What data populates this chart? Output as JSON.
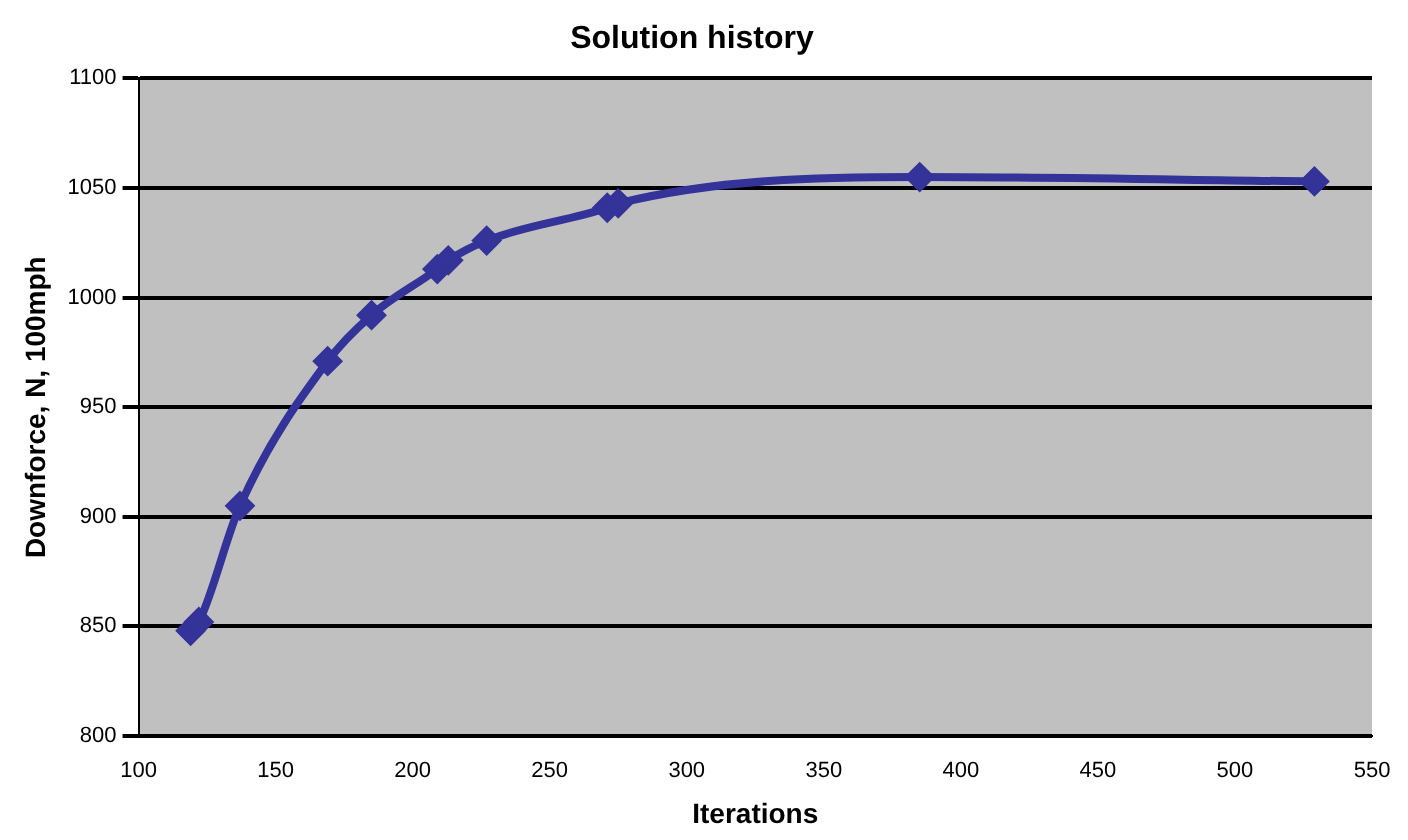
{
  "chart_data": {
    "type": "line",
    "title": "Solution history",
    "xlabel": "Iterations",
    "ylabel": "Downforce, N, 100mph",
    "series": [
      {
        "color": "#333399",
        "x": [
          119,
          122,
          137,
          169,
          185,
          209,
          213,
          227,
          271,
          275,
          385,
          529
        ],
        "values": [
          848,
          852,
          905,
          971,
          992,
          1013,
          1017,
          1026,
          1041,
          1043,
          1055,
          1053
        ]
      }
    ],
    "xlim": [
      100,
      550
    ],
    "xticks": [
      100,
      150,
      200,
      250,
      300,
      350,
      400,
      450,
      500,
      550
    ],
    "ylim": [
      800,
      1100
    ],
    "yticks": [
      800,
      850,
      900,
      950,
      1000,
      1050,
      1100
    ],
    "grid": "y",
    "legend": false,
    "marker": "diamond",
    "line_style": "solid"
  }
}
